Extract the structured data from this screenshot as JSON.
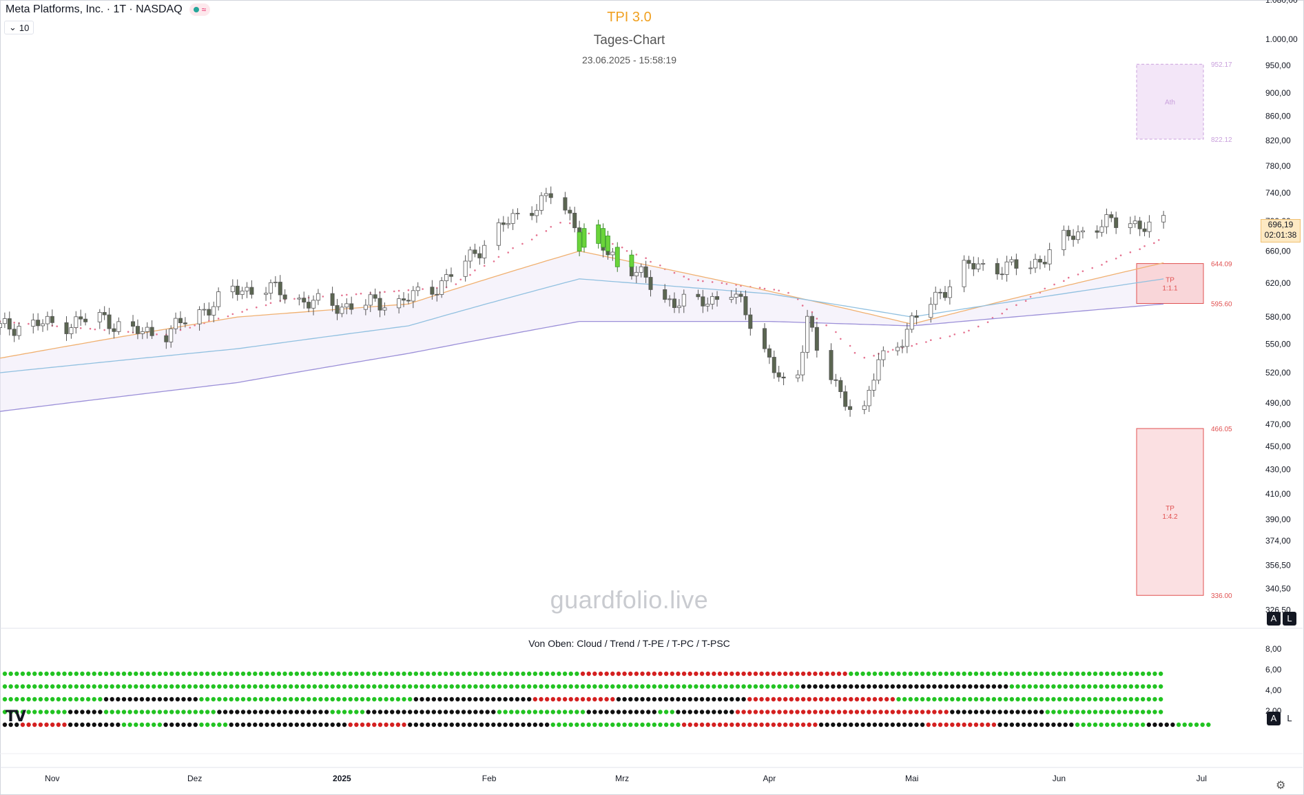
{
  "legend": {
    "symbol": "Meta Platforms, Inc. · 1T · NASDAQ",
    "indicator_glyph": "≈",
    "collapse_count": "10"
  },
  "header": {
    "title": "TPI 3.0",
    "subtitle": "Tages-Chart",
    "timestamp": "23.06.2025 - 15:58:19"
  },
  "watermark": "guardfolio.live",
  "price_tag": {
    "price": "696,19",
    "countdown": "02:01:38"
  },
  "lower_pane": {
    "title": "Von Oben: Cloud / Trend / T-PE / T-PC / T-PSC"
  },
  "axis_buttons": {
    "auto": "A",
    "log": "L"
  },
  "chart_data": {
    "type": "candlestick",
    "y_axis": {
      "scale": "log",
      "ylim": [
        315,
        1080
      ],
      "ticks": [
        1080,
        1000,
        950,
        900,
        860,
        820,
        780,
        740,
        700,
        660,
        620,
        580,
        550,
        520,
        490,
        470,
        450,
        430,
        410,
        390,
        374,
        356.5,
        340.5,
        326.5
      ],
      "tick_labels": [
        "1.080,00",
        "1.000,00",
        "950,00",
        "900,00",
        "860,00",
        "820,00",
        "780,00",
        "740,00",
        "700,00",
        "660,00",
        "620,00",
        "580,00",
        "550,00",
        "520,00",
        "490,00",
        "470,00",
        "450,00",
        "430,00",
        "410,00",
        "390,00",
        "374,00",
        "356,50",
        "340,50",
        "326,50"
      ]
    },
    "x_axis": {
      "start": "2024-10-21",
      "end": "2025-07-13",
      "tick_labels": [
        {
          "date": "2024-11-01",
          "label": "Nov"
        },
        {
          "date": "2024-12-01",
          "label": "Dez"
        },
        {
          "date": "2025-01-01",
          "label": "2025"
        },
        {
          "date": "2025-02-01",
          "label": "Feb"
        },
        {
          "date": "2025-03-01",
          "label": "Mrz"
        },
        {
          "date": "2025-04-01",
          "label": "Apr"
        },
        {
          "date": "2025-05-01",
          "label": "Mai"
        },
        {
          "date": "2025-06-01",
          "label": "Jun"
        },
        {
          "date": "2025-07-01",
          "label": "Jul"
        }
      ]
    },
    "last_price": 696.19,
    "price_path": [
      [
        "2024-10-21",
        568
      ],
      [
        "2024-10-28",
        572
      ],
      [
        "2024-11-04",
        572
      ],
      [
        "2024-11-11",
        580
      ],
      [
        "2024-11-18",
        563
      ],
      [
        "2024-11-25",
        563
      ],
      [
        "2024-11-28",
        572
      ],
      [
        "2024-12-02",
        585
      ],
      [
        "2024-12-09",
        610
      ],
      [
        "2024-12-16",
        615
      ],
      [
        "2024-12-23",
        600
      ],
      [
        "2024-12-30",
        592
      ],
      [
        "2025-01-06",
        595
      ],
      [
        "2025-01-13",
        598
      ],
      [
        "2025-01-20",
        612
      ],
      [
        "2025-01-27",
        645
      ],
      [
        "2025-02-03",
        690
      ],
      [
        "2025-02-10",
        720
      ],
      [
        "2025-02-14",
        736
      ],
      [
        "2025-02-18",
        705
      ],
      [
        "2025-02-24",
        665
      ],
      [
        "2025-03-03",
        640
      ],
      [
        "2025-03-10",
        600
      ],
      [
        "2025-03-17",
        595
      ],
      [
        "2025-03-24",
        610
      ],
      [
        "2025-03-28",
        575
      ],
      [
        "2025-04-04",
        505
      ],
      [
        "2025-04-07",
        515
      ],
      [
        "2025-04-09",
        585
      ],
      [
        "2025-04-11",
        545
      ],
      [
        "2025-04-16",
        495
      ],
      [
        "2025-04-21",
        485
      ],
      [
        "2025-04-24",
        530
      ],
      [
        "2025-04-28",
        550
      ],
      [
        "2025-05-01",
        575
      ],
      [
        "2025-05-05",
        595
      ],
      [
        "2025-05-12",
        640
      ],
      [
        "2025-05-19",
        640
      ],
      [
        "2025-05-26",
        640
      ],
      [
        "2025-06-02",
        675
      ],
      [
        "2025-06-09",
        695
      ],
      [
        "2025-06-16",
        700
      ],
      [
        "2025-06-20",
        690
      ],
      [
        "2025-06-23",
        696
      ]
    ],
    "green_candles": [
      [
        "2025-02-20",
        660,
        685
      ],
      [
        "2025-02-21",
        665,
        690
      ],
      [
        "2025-02-24",
        670,
        695
      ],
      [
        "2025-02-25",
        665,
        690
      ],
      [
        "2025-02-26",
        660,
        680
      ],
      [
        "2025-02-28",
        640,
        665
      ],
      [
        "2025-03-03",
        640,
        655
      ]
    ],
    "series": [
      {
        "id": "sar",
        "style": "dotted",
        "color": "#e57390",
        "points": [
          [
            "2024-10-21",
            575
          ],
          [
            "2024-11-25",
            560
          ],
          [
            "2024-12-20",
            600
          ],
          [
            "2025-01-24",
            615
          ],
          [
            "2025-02-17",
            700
          ],
          [
            "2025-03-15",
            625
          ],
          [
            "2025-04-05",
            610
          ],
          [
            "2025-04-21",
            535
          ],
          [
            "2025-05-14",
            565
          ],
          [
            "2025-06-01",
            620
          ],
          [
            "2025-06-23",
            675
          ]
        ]
      },
      {
        "id": "ma-fast",
        "color": "#f0b070",
        "points": [
          [
            "2024-10-21",
            535
          ],
          [
            "2024-12-10",
            580
          ],
          [
            "2025-01-15",
            595
          ],
          [
            "2025-02-20",
            660
          ],
          [
            "2025-04-01",
            610
          ],
          [
            "2025-05-01",
            572
          ],
          [
            "2025-06-23",
            645
          ]
        ]
      },
      {
        "id": "ma-mid",
        "color": "#90c0e0",
        "points": [
          [
            "2024-10-21",
            520
          ],
          [
            "2024-12-10",
            545
          ],
          [
            "2025-01-15",
            570
          ],
          [
            "2025-02-20",
            625
          ],
          [
            "2025-04-01",
            607
          ],
          [
            "2025-05-01",
            580
          ],
          [
            "2025-06-23",
            625
          ]
        ]
      },
      {
        "id": "ma-slow",
        "color": "#9b8fd8",
        "points": [
          [
            "2024-10-21",
            482
          ],
          [
            "2024-12-10",
            510
          ],
          [
            "2025-01-15",
            540
          ],
          [
            "2025-02-20",
            575
          ],
          [
            "2025-04-01",
            575
          ],
          [
            "2025-05-01",
            570
          ],
          [
            "2025-06-23",
            595
          ]
        ]
      }
    ],
    "boxes": [
      {
        "id": "ath-box",
        "top": 952.17,
        "bottom": 822.12,
        "label": "Ath",
        "top_label": "952.17",
        "bottom_label": "822.12",
        "fill": "#f3e6f8",
        "stroke": "#c9a0dc"
      },
      {
        "id": "tp1-box",
        "top": 644.09,
        "bottom": 595.6,
        "label": "TP",
        "sublabel": "1:1.1",
        "top_label": "644.09",
        "bottom_label": "595.60",
        "fill": "#f9d6d9",
        "stroke": "#e05050"
      },
      {
        "id": "tp2-box",
        "top": 466.05,
        "bottom": 336.0,
        "label": "TP",
        "sublabel": "1:4.2",
        "top_label": "466.05",
        "bottom_label": "336.00",
        "fill": "#fbe0e2",
        "stroke": "#e05050"
      }
    ],
    "lower_pane": {
      "y_tick_labels": [
        "8,00",
        "6,00",
        "4,00",
        "2,00"
      ],
      "y_ticks": [
        8,
        6,
        4,
        2
      ],
      "dot_rows": [
        {
          "name": "Cloud",
          "segments": [
            [
              "g",
              97
            ],
            [
              "r",
              45
            ],
            [
              "g",
              53
            ]
          ]
        },
        {
          "name": "Trend",
          "segments": [
            [
              "g",
              134
            ],
            [
              "k",
              35
            ],
            [
              "g",
              26
            ]
          ]
        },
        {
          "name": "T-PE",
          "segments": [
            [
              "g",
              17
            ],
            [
              "k",
              16
            ],
            [
              "g",
              36
            ],
            [
              "k",
              20
            ],
            [
              "r",
              14
            ],
            [
              "k",
              22
            ],
            [
              "r",
              25
            ],
            [
              "g",
              45
            ]
          ]
        },
        {
          "name": "T-PC",
          "segments": [
            [
              "g",
              11
            ],
            [
              "k",
              6
            ],
            [
              "g",
              19
            ],
            [
              "k",
              19
            ],
            [
              "g",
              6
            ],
            [
              "k",
              22
            ],
            [
              "g",
              15
            ],
            [
              "k",
              12
            ],
            [
              "g",
              3
            ],
            [
              "k",
              10
            ],
            [
              "r",
              36
            ],
            [
              "k",
              16
            ],
            [
              "g",
              20
            ]
          ]
        },
        {
          "name": "T-PSC",
          "segments": [
            [
              "k",
              3
            ],
            [
              "r",
              8
            ],
            [
              "k",
              9
            ],
            [
              "g",
              7
            ],
            [
              "k",
              6
            ],
            [
              "g",
              5
            ],
            [
              "k",
              20
            ],
            [
              "r",
              10
            ],
            [
              "k",
              24
            ],
            [
              "g",
              22
            ],
            [
              "r",
              23
            ],
            [
              "k",
              18
            ],
            [
              "r",
              12
            ],
            [
              "k",
              13
            ],
            [
              "g",
              12
            ],
            [
              "k",
              5
            ],
            [
              "g",
              6
            ]
          ]
        }
      ]
    }
  }
}
